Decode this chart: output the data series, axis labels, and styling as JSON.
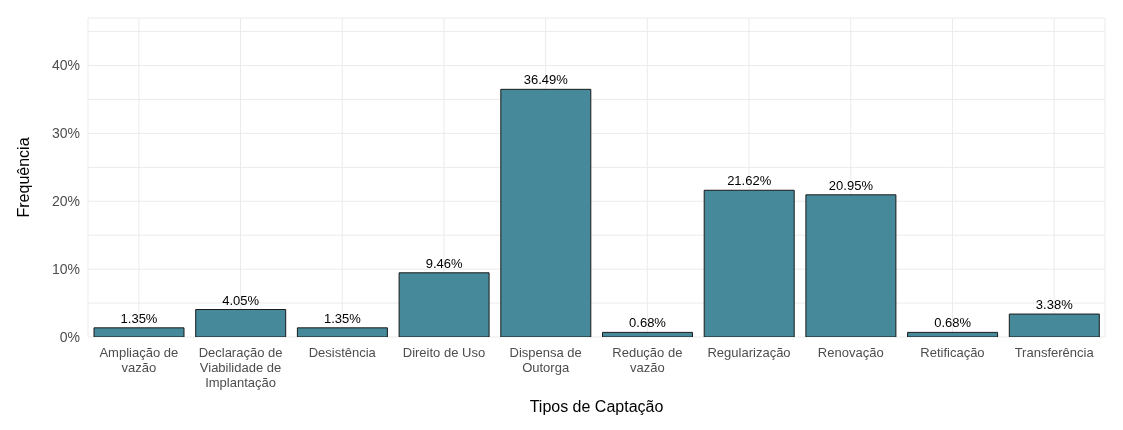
{
  "chart_data": {
    "type": "bar",
    "xlabel": "Tipos de Captação",
    "ylabel": "Frequência",
    "categories": [
      "Ampliação de vazão",
      "Declaração de Viabilidade de Implantação",
      "Desistência",
      "Direito de Uso",
      "Dispensa de Outorga",
      "Redução de vazão",
      "Regularização",
      "Renovação",
      "Retificação",
      "Transferência"
    ],
    "values": [
      1.35,
      4.05,
      1.35,
      9.46,
      36.49,
      0.68,
      21.62,
      20.95,
      0.68,
      3.38
    ],
    "value_labels": [
      "1.35%",
      "4.05%",
      "1.35%",
      "9.46%",
      "36.49%",
      "0.68%",
      "21.62%",
      "20.95%",
      "0.68%",
      "3.38%"
    ],
    "color": "#45899a",
    "ylim": [
      0,
      47
    ],
    "yticks": [
      {
        "value": 0,
        "label": "0%"
      },
      {
        "value": 5,
        "label": null
      },
      {
        "value": 10,
        "label": "10%"
      },
      {
        "value": 15,
        "label": null
      },
      {
        "value": 20,
        "label": "20%"
      },
      {
        "value": 25,
        "label": null
      },
      {
        "value": 30,
        "label": "30%"
      },
      {
        "value": 35,
        "label": null
      },
      {
        "value": 40,
        "label": "40%"
      },
      {
        "value": 45,
        "label": null
      }
    ],
    "grid": true
  }
}
